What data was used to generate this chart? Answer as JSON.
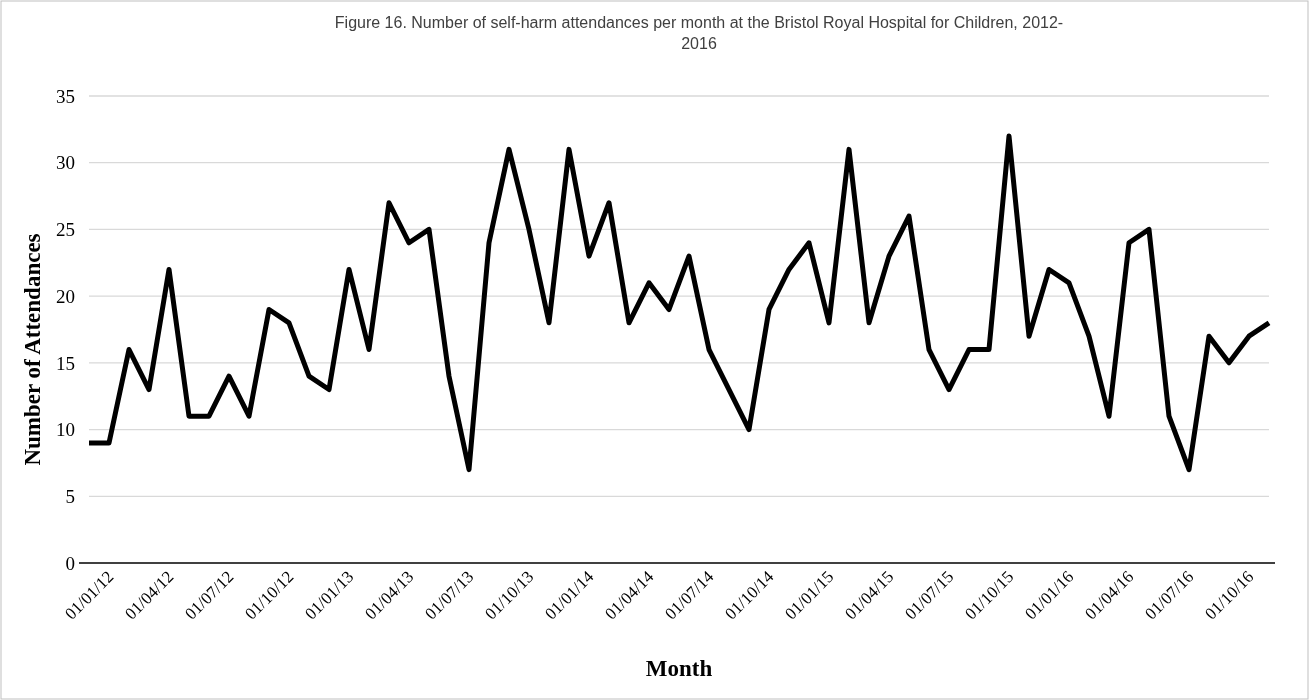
{
  "chart_data": {
    "type": "line",
    "title": "Figure 16. Number of self-harm attendances per month at the Bristol Royal Hospital for Children, 2012-2016",
    "xlabel": "Month",
    "ylabel": "Number of Attendances",
    "categories": [
      "01/01/12",
      null,
      null,
      "01/04/12",
      null,
      null,
      "01/07/12",
      null,
      null,
      "01/10/12",
      null,
      null,
      "01/01/13",
      null,
      null,
      "01/04/13",
      null,
      null,
      "01/07/13",
      null,
      null,
      "01/10/13",
      null,
      null,
      "01/01/14",
      null,
      null,
      "01/04/14",
      null,
      null,
      "01/07/14",
      null,
      null,
      "01/10/14",
      null,
      null,
      "01/01/15",
      null,
      null,
      "01/04/15",
      null,
      null,
      "01/07/15",
      null,
      null,
      "01/10/15",
      null,
      null,
      "01/01/16",
      null,
      null,
      "01/04/16",
      null,
      null,
      "01/07/16",
      null,
      null,
      "01/10/16",
      null,
      null
    ],
    "series": [
      {
        "color": "#000000",
        "values": [
          9,
          9,
          16,
          13,
          22,
          11,
          11,
          14,
          11,
          19,
          18,
          14,
          13,
          22,
          16,
          27,
          24,
          25,
          14,
          7,
          24,
          31,
          25,
          18,
          31,
          23,
          27,
          18,
          21,
          19,
          23,
          16,
          13,
          10,
          19,
          22,
          24,
          18,
          31,
          18,
          23,
          26,
          16,
          13,
          16,
          16,
          32,
          17,
          22,
          21,
          17,
          11,
          24,
          25,
          11,
          7,
          17,
          15,
          17,
          18
        ]
      }
    ],
    "ylim": [
      0,
      35
    ],
    "yticks": [
      0,
      5,
      10,
      15,
      20,
      25,
      30,
      35
    ],
    "grid": "y",
    "marker": "none",
    "line_style": "solid"
  }
}
